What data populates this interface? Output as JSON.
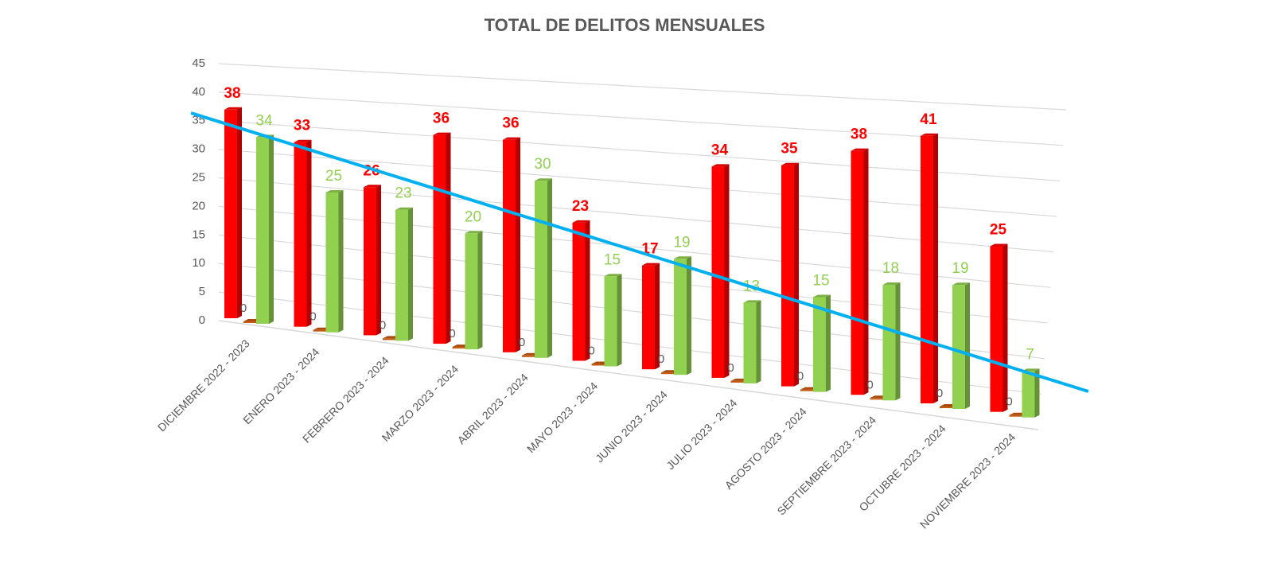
{
  "chart_data": {
    "type": "bar3d",
    "title": "TOTAL DE DELITOS MENSUALES",
    "categories": [
      "DICIEMBRE 2022 - 2023",
      "ENERO 2023 - 2024",
      "FEBRERO 2023 - 2024",
      "MARZO 2023 - 2024",
      "ABRIL  2023 - 2024",
      "MAYO 2023 - 2024",
      "JUNIO  2023 - 2024",
      "JULIO 2023 - 2024",
      "AGOSTO 2023 - 2024",
      "SEPTIEMBRE 2023 - 2024",
      "OCTUBRE 2023 - 2024",
      "NOVIEMBRE 2023 - 2024"
    ],
    "series": [
      {
        "color": "#ff0000",
        "values": [
          38,
          33,
          26,
          36,
          36,
          23,
          17,
          34,
          35,
          38,
          41,
          25
        ]
      },
      {
        "color": "#c55a11",
        "values": [
          0,
          0,
          0,
          0,
          0,
          0,
          0,
          0,
          0,
          0,
          0,
          0
        ]
      },
      {
        "color": "#92d050",
        "values": [
          34,
          25,
          23,
          20,
          30,
          15,
          19,
          13,
          15,
          18,
          19,
          7
        ]
      }
    ],
    "ylim": [
      0,
      45
    ],
    "yticks": [
      0,
      5,
      10,
      15,
      20,
      25,
      30,
      35,
      40,
      45
    ],
    "grid": true
  }
}
